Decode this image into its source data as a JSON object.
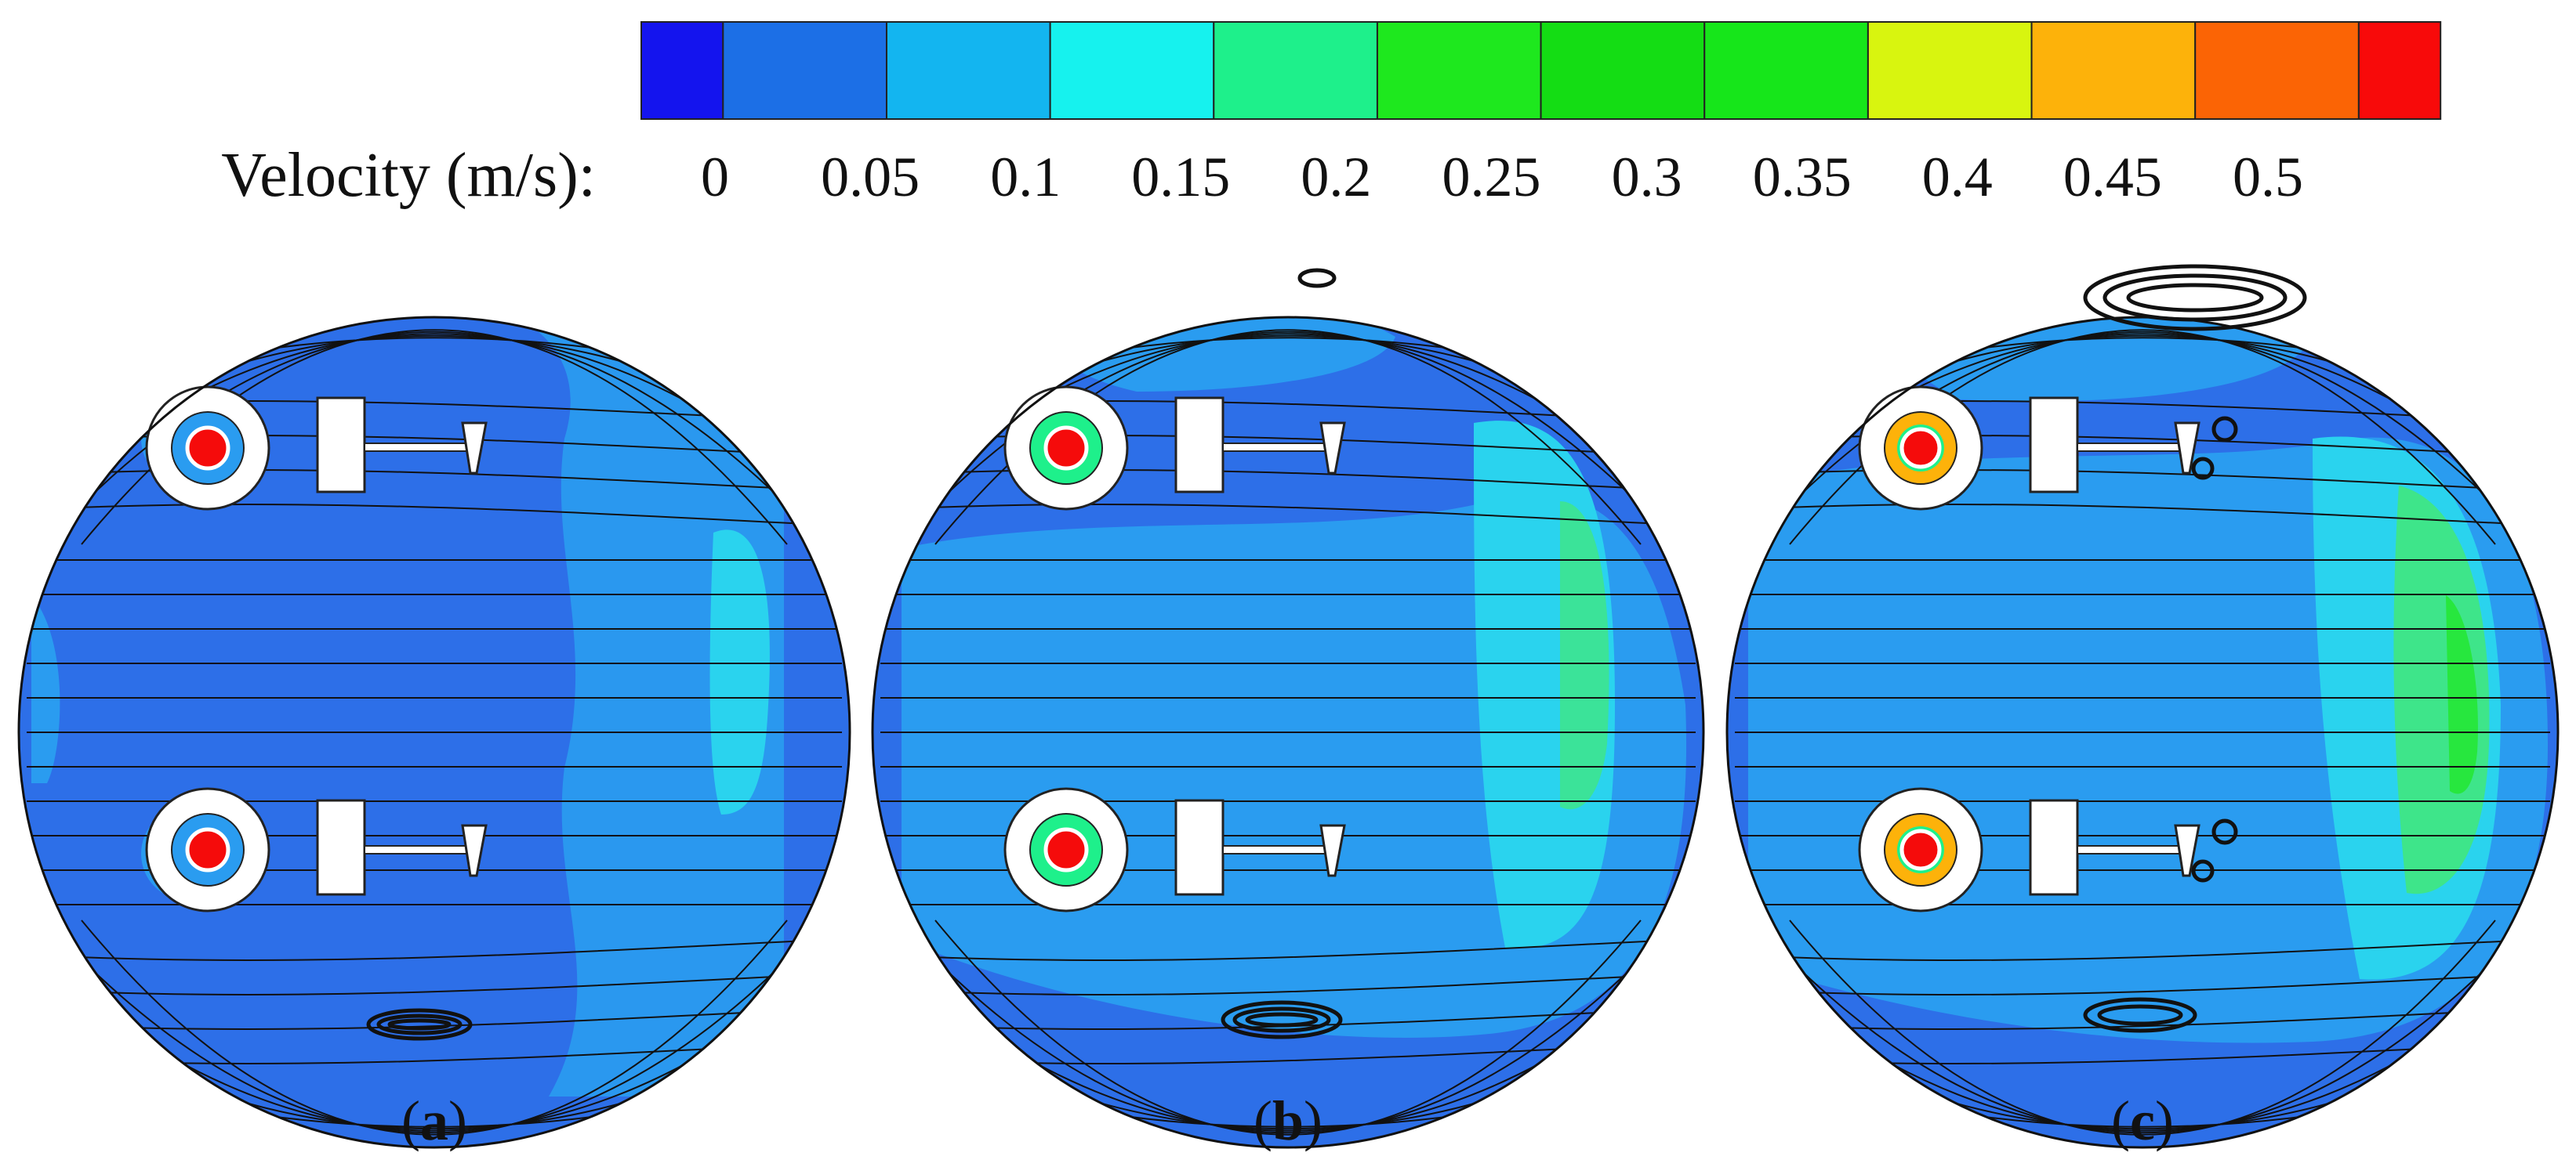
{
  "colorbar": {
    "label": "Velocity (m/s):",
    "ticks": [
      "0",
      "0.05",
      "0.1",
      "0.15",
      "0.2",
      "0.25",
      "0.3",
      "0.35",
      "0.4",
      "0.45",
      "0.5"
    ],
    "colors": [
      "#1414ee",
      "#1c6fe6",
      "#13b5f0",
      "#16f2ee",
      "#1ef08b",
      "#1ee81e",
      "#14dd14",
      "#16e61a",
      "#d8f50f",
      "#fdb20a",
      "#fb6405",
      "#f80a0a"
    ]
  },
  "panels": [
    {
      "id": "a",
      "caption_open": "(",
      "caption_letter": "a",
      "caption_close": ")"
    },
    {
      "id": "b",
      "caption_open": "(",
      "caption_letter": "b",
      "caption_close": ")"
    },
    {
      "id": "c",
      "caption_open": "(",
      "caption_letter": "c",
      "caption_close": ")"
    }
  ],
  "colors": {
    "field_base": "#2d6fe8",
    "field_mid": "#2a9cf0",
    "field_cyan": "#2ad3ee",
    "field_green": "#3ee58a",
    "streamline": "#111111",
    "hot_core": "#f50b0b"
  }
}
